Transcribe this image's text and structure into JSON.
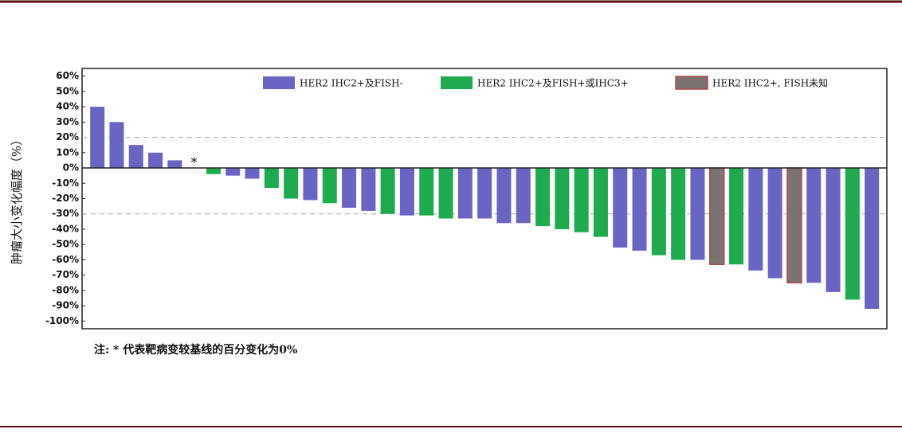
{
  "chart_data": {
    "type": "bar",
    "ylabel": "肿瘤大小变化幅度（%）",
    "note": "注: * 代表靶病变较基线的百分变化为0%",
    "ylim": [
      -105,
      65
    ],
    "yticks": [
      {
        "value": 60,
        "label": "60%"
      },
      {
        "value": 50,
        "label": "50%"
      },
      {
        "value": 40,
        "label": "40%"
      },
      {
        "value": 30,
        "label": "30%"
      },
      {
        "value": 20,
        "label": "20%"
      },
      {
        "value": 10,
        "label": "10%"
      },
      {
        "value": 0,
        "label": "0%"
      },
      {
        "value": -10,
        "label": "-10%"
      },
      {
        "value": -20,
        "label": "-20%"
      },
      {
        "value": -30,
        "label": "-30%"
      },
      {
        "value": -40,
        "label": "-40%"
      },
      {
        "value": -50,
        "label": "-50%"
      },
      {
        "value": -60,
        "label": "-60%"
      },
      {
        "value": -70,
        "label": "-70%"
      },
      {
        "value": -80,
        "label": "-80%"
      },
      {
        "value": -90,
        "label": "-90%"
      },
      {
        "value": -100,
        "label": "-100%"
      }
    ],
    "reference_lines": [
      20,
      -30
    ],
    "series": [
      {
        "name": "HER2 IHC2+及FISH-",
        "color": "#6a64c2",
        "values": [
          40,
          30,
          15,
          10,
          5,
          0,
          null,
          -5,
          -7,
          null,
          null,
          -21,
          null,
          -26,
          -28,
          null,
          -31,
          null,
          null,
          -33,
          -33,
          -36,
          -36,
          null,
          null,
          null,
          null,
          -52,
          -54,
          null,
          null,
          -60,
          null,
          null,
          -67,
          -72,
          null,
          -75,
          -81,
          null,
          -92
        ],
        "value_labels": [
          null,
          null,
          null,
          null,
          null,
          "*",
          null,
          null,
          null,
          null,
          null,
          null,
          null,
          null,
          null,
          null,
          null,
          null,
          null,
          null,
          null,
          null,
          null,
          null,
          null,
          null,
          null,
          null,
          null,
          null,
          null,
          null,
          null,
          null,
          null,
          null,
          null,
          null,
          null,
          null,
          null
        ]
      },
      {
        "name": "HER2 IHC2+及FISH+或IHC3+",
        "color": "#1faa50",
        "values": [
          null,
          null,
          null,
          null,
          null,
          null,
          -4,
          null,
          null,
          -13,
          -20,
          null,
          -23,
          null,
          null,
          -30,
          null,
          -31,
          -33,
          null,
          null,
          null,
          null,
          -38,
          -40,
          -42,
          -45,
          null,
          null,
          -57,
          -60,
          null,
          null,
          -63,
          null,
          null,
          null,
          null,
          null,
          -86,
          null
        ]
      },
      {
        "name": "HER2 IHC2+, FISH未知",
        "color": "#7d7272",
        "edge_color": "#b04a4a",
        "values": [
          null,
          null,
          null,
          null,
          null,
          null,
          null,
          null,
          null,
          null,
          null,
          null,
          null,
          null,
          null,
          null,
          null,
          null,
          null,
          null,
          null,
          null,
          null,
          null,
          null,
          null,
          null,
          null,
          null,
          null,
          null,
          null,
          -63,
          null,
          null,
          null,
          -75,
          null,
          null,
          null,
          null
        ]
      }
    ]
  }
}
